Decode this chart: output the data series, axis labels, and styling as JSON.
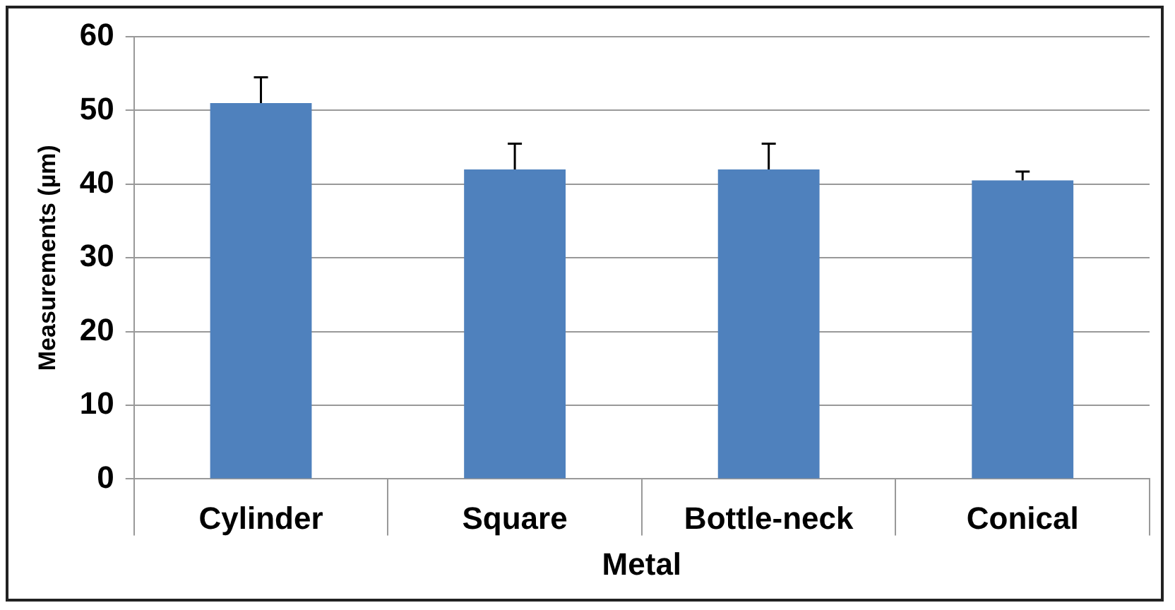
{
  "chart_data": {
    "type": "bar",
    "categories": [
      "Cylinder",
      "Square",
      "Bottle-neck",
      "Conical"
    ],
    "values": [
      51,
      42,
      42,
      40.5
    ],
    "errors": [
      [
        51,
        54.5
      ],
      [
        42,
        45.5
      ],
      [
        42,
        45.5
      ],
      [
        40.5,
        41.7
      ]
    ],
    "color": "#4f81bd",
    "ylim": [
      0,
      60
    ],
    "yticks": [
      0,
      10,
      20,
      30,
      40,
      50,
      60
    ],
    "grid": "y",
    "ylabel": "Measurements (µm)",
    "xlabel": "Metal"
  }
}
